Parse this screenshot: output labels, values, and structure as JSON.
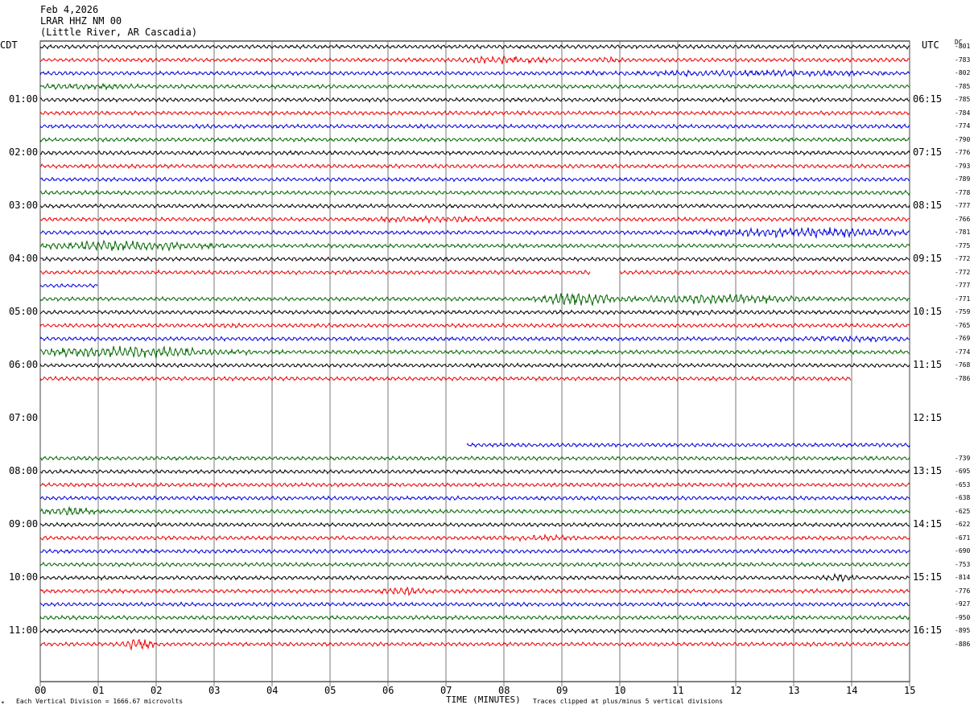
{
  "header": {
    "date": "Feb 4,2026",
    "station": "LRAR HHZ NM 00",
    "location": "(Little River, AR Cascadia)"
  },
  "left_tz": "CDT",
  "right_tz": "UTC",
  "dc_header": "DC",
  "footer": {
    "scale_note": "Each Vertical Division = 1666.67 microvolts",
    "xlabel": "TIME (MINUTES)",
    "clip_note": "Traces clipped at plus/minus 5 vertical divisions",
    "logo_mark": "✴"
  },
  "colors": {
    "trace_cycle": [
      "#000000",
      "#ee0000",
      "#0000dd",
      "#006600"
    ],
    "grid": "#555555"
  },
  "chart_data": {
    "type": "line",
    "title": "LRAR HHZ NM 00",
    "xlabel": "TIME (MINUTES)",
    "ylabel": "",
    "xlim": [
      0,
      15
    ],
    "x_tick_labels": [
      "00",
      "01",
      "02",
      "03",
      "04",
      "05",
      "06",
      "07",
      "08",
      "09",
      "10",
      "11",
      "12",
      "13",
      "14",
      "15"
    ],
    "left_hour_labels": [
      "01:00",
      "02:00",
      "03:00",
      "04:00",
      "05:00",
      "06:00",
      "07:00",
      "08:00",
      "09:00",
      "10:00",
      "11:00"
    ],
    "right_hour_labels": [
      "06:15",
      "07:15",
      "08:15",
      "09:15",
      "10:15",
      "11:15",
      "12:15",
      "13:15",
      "14:15",
      "15:15",
      "16:15"
    ],
    "rows_per_hour": 4,
    "dc_offsets": [
      "-801",
      "-783",
      "-802",
      "-785",
      "-785",
      "-784",
      "-774",
      "-790",
      "-776",
      "-793",
      "-789",
      "-778",
      "-777",
      "-766",
      "-781",
      "-775",
      "-772",
      "-772",
      "-777",
      "-771",
      "-759",
      "-765",
      "-769",
      "-774",
      "-768",
      "-786",
      "",
      "",
      "",
      "",
      "",
      "-739",
      "-695",
      "-653",
      "-638",
      "-625",
      "-622",
      "-671",
      "-690",
      "-753",
      "-814",
      "-776",
      "-927",
      "-950",
      "-895",
      "-886"
    ],
    "trace_gaps_minutes": [
      {
        "row": 17,
        "from": 9.5,
        "to": 10.0
      },
      {
        "row": 18,
        "from": 1.0,
        "to": 15.0
      },
      {
        "row": 25,
        "from": 14.0,
        "to": 15.0
      },
      {
        "row": 26,
        "from": 0,
        "to": 15
      },
      {
        "row": 27,
        "from": 0,
        "to": 15
      },
      {
        "row": 28,
        "from": 0,
        "to": 15
      },
      {
        "row": 29,
        "from": 0,
        "to": 15
      },
      {
        "row": 30,
        "from": 0,
        "to": 7.35
      }
    ],
    "bursts": [
      {
        "row": 1,
        "center": 8.0,
        "width": 1.4,
        "amp": 2.2
      },
      {
        "row": 1,
        "center": 9.8,
        "width": 0.5,
        "amp": 1.6
      },
      {
        "row": 2,
        "center": 12.0,
        "width": 6.0,
        "amp": 1.6
      },
      {
        "row": 3,
        "center": 0.8,
        "width": 2.2,
        "amp": 1.5
      },
      {
        "row": 6,
        "center": 5.7,
        "width": 0.5,
        "amp": 1.2
      },
      {
        "row": 6,
        "center": 8.6,
        "width": 0.5,
        "amp": 1.2
      },
      {
        "row": 13,
        "center": 6.7,
        "width": 3.0,
        "amp": 1.6
      },
      {
        "row": 14,
        "center": 13.3,
        "width": 3.6,
        "amp": 2.6
      },
      {
        "row": 15,
        "center": 1.4,
        "width": 3.0,
        "amp": 2.6
      },
      {
        "row": 19,
        "center": 9.3,
        "width": 1.4,
        "amp": 3.6
      },
      {
        "row": 19,
        "center": 11.6,
        "width": 3.5,
        "amp": 2.6
      },
      {
        "row": 20,
        "center": 11.2,
        "width": 1.6,
        "amp": 1.3
      },
      {
        "row": 21,
        "center": 3.3,
        "width": 0.6,
        "amp": 1.3
      },
      {
        "row": 22,
        "center": 14.0,
        "width": 2.8,
        "amp": 1.6
      },
      {
        "row": 23,
        "center": 1.6,
        "width": 3.5,
        "amp": 3.0
      },
      {
        "row": 35,
        "center": 0.5,
        "width": 1.0,
        "amp": 2.6
      },
      {
        "row": 36,
        "center": 9.5,
        "width": 6.0,
        "amp": 1.2
      },
      {
        "row": 37,
        "center": 8.6,
        "width": 2.0,
        "amp": 1.5
      },
      {
        "row": 40,
        "center": 13.8,
        "width": 0.6,
        "amp": 2.0
      },
      {
        "row": 41,
        "center": 6.3,
        "width": 0.9,
        "amp": 2.4
      },
      {
        "row": 44,
        "center": 11.8,
        "width": 3.0,
        "amp": 1.2
      },
      {
        "row": 45,
        "center": 1.7,
        "width": 0.5,
        "amp": 3.8
      }
    ]
  }
}
